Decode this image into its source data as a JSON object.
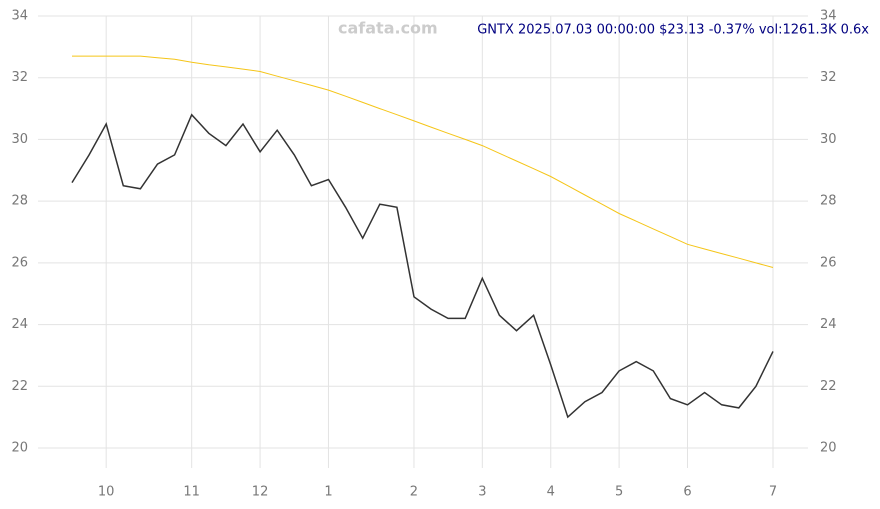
{
  "chart_data": {
    "type": "line",
    "title": "GNTX 2025.07.03 00:00:00 $23.13 -0.37% vol:1261.3K 0.6x",
    "watermark": "cafata.com",
    "categories": [
      null,
      null,
      "10",
      null,
      null,
      null,
      null,
      "11",
      null,
      null,
      null,
      "12",
      null,
      null,
      null,
      "1",
      null,
      null,
      null,
      null,
      "2",
      null,
      null,
      null,
      "3",
      null,
      null,
      null,
      "4",
      null,
      null,
      null,
      "5",
      null,
      null,
      null,
      "6",
      null,
      null,
      null,
      null,
      "7"
    ],
    "series": [
      {
        "color": "#333333",
        "values": [
          28.6,
          29.5,
          30.5,
          28.5,
          28.4,
          29.2,
          29.5,
          30.8,
          30.2,
          29.8,
          30.5,
          29.6,
          30.3,
          29.5,
          28.5,
          28.7,
          27.8,
          26.8,
          27.9,
          27.8,
          24.9,
          24.5,
          24.2,
          24.2,
          25.5,
          24.3,
          23.8,
          24.3,
          22.7,
          21.0,
          21.5,
          21.8,
          22.5,
          22.8,
          22.5,
          21.6,
          21.4,
          21.8,
          21.4,
          21.3,
          22.0,
          23.13
        ]
      },
      {
        "color": "#f5c518",
        "values": [
          32.7,
          32.7,
          32.7,
          32.7,
          32.7,
          32.65,
          32.6,
          32.5,
          32.42,
          32.35,
          32.28,
          32.2,
          32.05,
          31.9,
          31.75,
          31.6,
          31.4,
          31.2,
          31.0,
          30.8,
          30.6,
          30.4,
          30.2,
          30.0,
          29.8,
          29.55,
          29.3,
          29.05,
          28.8,
          28.5,
          28.2,
          27.9,
          27.6,
          27.35,
          27.1,
          26.85,
          26.6,
          26.45,
          26.3,
          26.15,
          26.0,
          25.85
        ]
      }
    ],
    "ylim": [
      20,
      34
    ],
    "yticks": [
      20,
      22,
      24,
      26,
      28,
      30,
      32,
      34
    ],
    "grid": true
  }
}
